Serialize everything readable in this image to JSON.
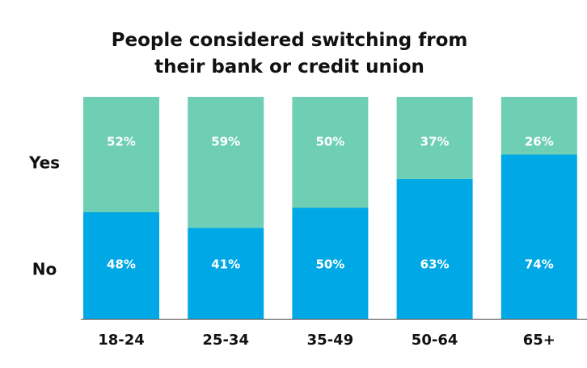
{
  "chart_data": {
    "type": "stacked_bar",
    "title": "People considered switching from their bank or credit union",
    "categories": [
      "18-24",
      "25-34",
      "35-49",
      "50-64",
      "65+"
    ],
    "series": [
      {
        "name": "No",
        "color": "#00a9e6",
        "values": [
          48,
          41,
          50,
          63,
          74
        ],
        "value_labels": [
          "48%",
          "41%",
          "50%",
          "63%",
          "74%"
        ]
      },
      {
        "name": "Yes",
        "color": "#6ecfb4",
        "values": [
          52,
          59,
          50,
          37,
          26
        ],
        "value_labels": [
          "52%",
          "59%",
          "50%",
          "37%",
          "26%"
        ]
      }
    ],
    "ylim": [
      0,
      100
    ]
  }
}
